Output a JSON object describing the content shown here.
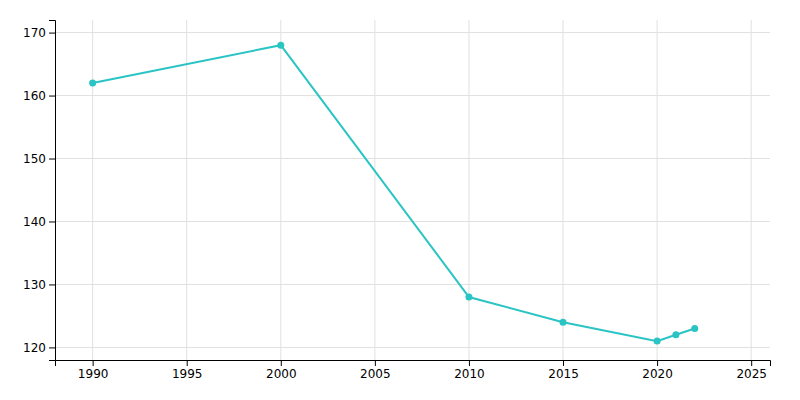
{
  "chart_data": {
    "type": "line",
    "x": [
      1990,
      2000,
      2010,
      2015,
      2020,
      2021,
      2022
    ],
    "values": [
      162,
      168,
      128,
      124,
      121,
      122,
      123
    ],
    "color": "#2ac4c4",
    "marker": "circle",
    "xlim": [
      1988,
      2026
    ],
    "ylim": [
      118,
      172
    ],
    "xticks": [
      1990,
      1995,
      2000,
      2005,
      2010,
      2015,
      2020,
      2025
    ],
    "yticks": [
      120,
      130,
      140,
      150,
      160,
      170
    ],
    "grid": true
  }
}
